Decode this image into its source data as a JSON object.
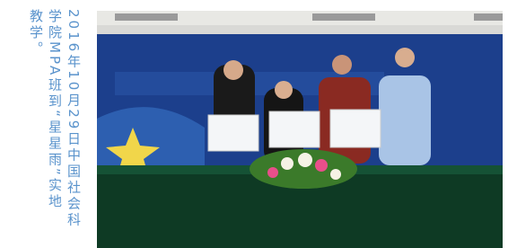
{
  "article": {
    "columns": [
      "2016年10月29日中国社会科",
      "学院MPA班到“星星雨”实地",
      "教学。"
    ]
  }
}
